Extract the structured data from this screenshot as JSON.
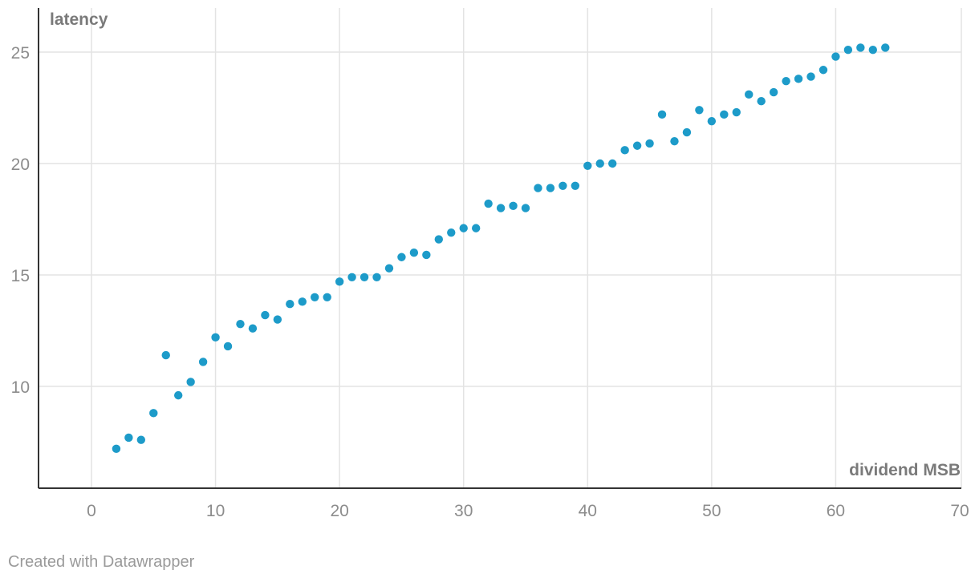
{
  "footer": {
    "credit": "Created with Datawrapper"
  },
  "colors": {
    "point": "#1d9bc9",
    "grid": "#e3e3e3",
    "axis": "#333333",
    "tick_text": "#8c8c8c",
    "axis_label": "#7a7a7a",
    "background": "#ffffff"
  },
  "chart_data": {
    "type": "scatter",
    "title": "",
    "xlabel": "dividend MSB",
    "ylabel": "latency",
    "xlim": [
      -4,
      70
    ],
    "ylim": [
      5.5,
      27
    ],
    "xticks": [
      0,
      10,
      20,
      30,
      40,
      50,
      60,
      70
    ],
    "yticks": [
      10,
      15,
      20,
      25
    ],
    "grid": true,
    "series": [
      {
        "color": "#1d9bc9",
        "points": [
          [
            2,
            7.2
          ],
          [
            3,
            7.7
          ],
          [
            4,
            7.6
          ],
          [
            5,
            8.8
          ],
          [
            6,
            11.4
          ],
          [
            7,
            9.6
          ],
          [
            8,
            10.2
          ],
          [
            9,
            11.1
          ],
          [
            10,
            12.2
          ],
          [
            11,
            11.8
          ],
          [
            12,
            12.8
          ],
          [
            13,
            12.6
          ],
          [
            14,
            13.2
          ],
          [
            15,
            13.0
          ],
          [
            16,
            13.7
          ],
          [
            17,
            13.8
          ],
          [
            18,
            14.0
          ],
          [
            19,
            14.0
          ],
          [
            20,
            14.7
          ],
          [
            21,
            14.9
          ],
          [
            22,
            14.9
          ],
          [
            23,
            14.9
          ],
          [
            24,
            15.3
          ],
          [
            25,
            15.8
          ],
          [
            26,
            16.0
          ],
          [
            27,
            15.9
          ],
          [
            28,
            16.6
          ],
          [
            29,
            16.9
          ],
          [
            30,
            17.1
          ],
          [
            31,
            17.1
          ],
          [
            32,
            18.2
          ],
          [
            33,
            18.0
          ],
          [
            34,
            18.1
          ],
          [
            35,
            18.0
          ],
          [
            36,
            18.9
          ],
          [
            37,
            18.9
          ],
          [
            38,
            19.0
          ],
          [
            39,
            19.0
          ],
          [
            40,
            19.9
          ],
          [
            41,
            20.0
          ],
          [
            42,
            20.0
          ],
          [
            43,
            20.6
          ],
          [
            44,
            20.8
          ],
          [
            45,
            20.9
          ],
          [
            46,
            22.2
          ],
          [
            47,
            21.0
          ],
          [
            48,
            21.4
          ],
          [
            49,
            22.4
          ],
          [
            50,
            21.9
          ],
          [
            51,
            22.2
          ],
          [
            52,
            22.3
          ],
          [
            53,
            23.1
          ],
          [
            54,
            22.8
          ],
          [
            55,
            23.2
          ],
          [
            56,
            23.7
          ],
          [
            57,
            23.8
          ],
          [
            58,
            23.9
          ],
          [
            59,
            24.2
          ],
          [
            60,
            24.8
          ],
          [
            61,
            25.1
          ],
          [
            62,
            25.2
          ],
          [
            63,
            25.1
          ],
          [
            64,
            25.2
          ]
        ]
      }
    ]
  }
}
